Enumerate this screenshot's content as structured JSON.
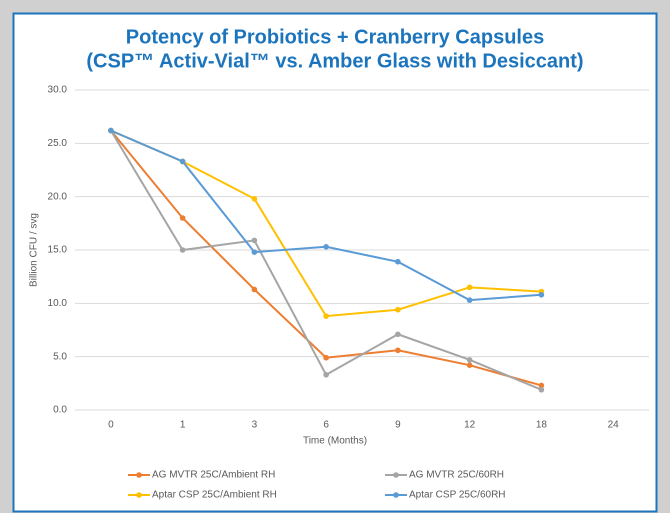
{
  "chart_data": {
    "type": "line",
    "title": [
      "Potency of Probiotics + Cranberry Capsules",
      "(CSP™ Activ-Vial™ vs. Amber Glass with Desiccant)"
    ],
    "x_label": "Time (Months)",
    "y_label": "Billion CFU / svg",
    "categories": [
      "0",
      "1",
      "3",
      "6",
      "9",
      "12",
      "18",
      "24"
    ],
    "series": [
      {
        "name": "AG MVTR 25C/Ambient RH",
        "color": "#ed7d31",
        "values": [
          26.2,
          18.0,
          11.3,
          4.9,
          5.6,
          4.2,
          2.3,
          null
        ]
      },
      {
        "name": "AG MVTR 25C/60RH",
        "color": "#a5a5a5",
        "values": [
          26.2,
          15.0,
          15.9,
          3.3,
          7.1,
          4.7,
          1.9,
          null
        ]
      },
      {
        "name": "Aptar CSP 25C/Ambient RH",
        "color": "#ffc000",
        "values": [
          26.2,
          23.3,
          19.8,
          8.8,
          9.4,
          11.5,
          11.1,
          null
        ]
      },
      {
        "name": "Aptar CSP 25C/60RH",
        "color": "#5b9bd5",
        "values": [
          26.2,
          23.3,
          14.8,
          15.3,
          13.9,
          10.3,
          10.8,
          null
        ]
      }
    ],
    "ylim": [
      0,
      30
    ],
    "yticks": [
      {
        "value": 0,
        "label": "0.0"
      },
      {
        "value": 5,
        "label": "5.0"
      },
      {
        "value": 10,
        "label": "10.0"
      },
      {
        "value": 15,
        "label": "15.0"
      },
      {
        "value": 20,
        "label": "20.0"
      },
      {
        "value": 25,
        "label": "25.0"
      },
      {
        "value": 30,
        "label": "30.0"
      }
    ],
    "grid": true,
    "legend": "bottom"
  }
}
